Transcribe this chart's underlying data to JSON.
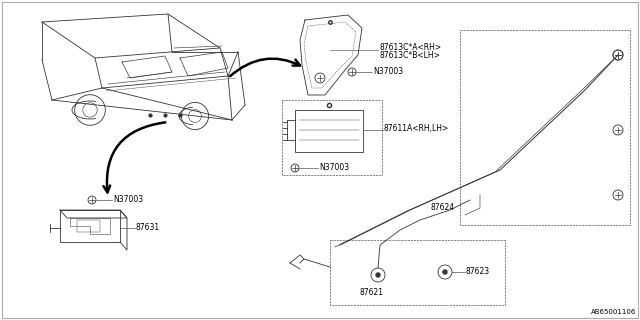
{
  "bg_color": "#ffffff",
  "line_color": "#333333",
  "text_color": "#000000",
  "diagram_ref": "AB65001106",
  "fs": 5.5,
  "lw": 0.6,
  "labels": {
    "87613CA_RH": "87613C*A<RH>",
    "87613CB_LH": "87613C*B<LH>",
    "N37003": "N37003",
    "87611A": "87611A<RH,LH>",
    "87631": "87631",
    "87624": "87624",
    "87621": "87621",
    "87623": "87623"
  }
}
